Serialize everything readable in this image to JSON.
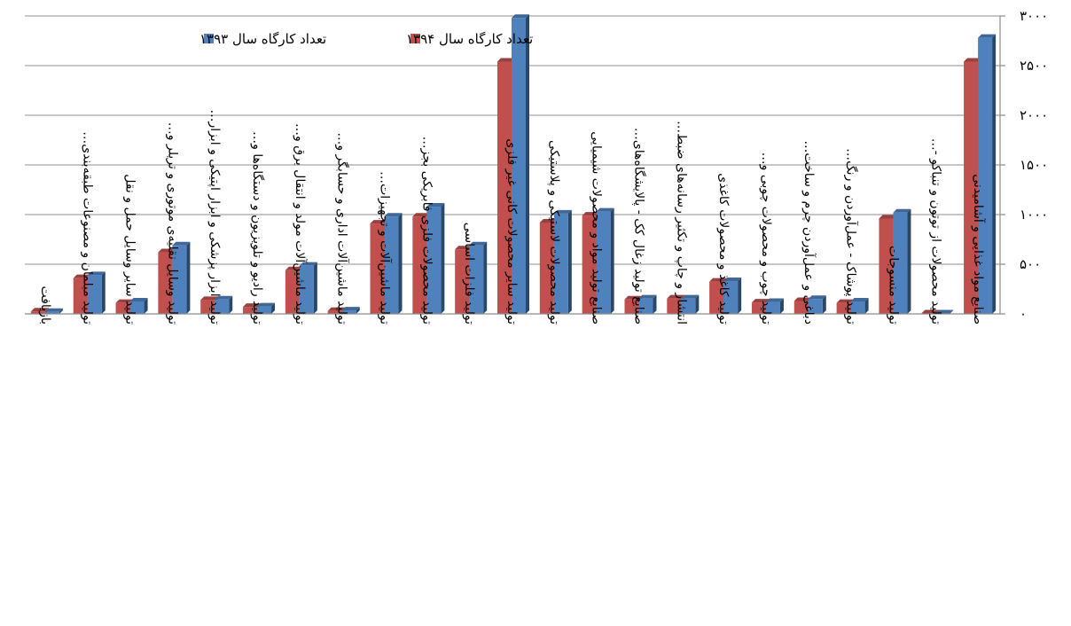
{
  "chart_data": {
    "type": "bar",
    "title": "",
    "xlabel": "",
    "ylabel": "",
    "ylim": [
      0,
      3000
    ],
    "yticks": [
      0,
      500,
      1000,
      1500,
      2000,
      2500,
      3000
    ],
    "ytick_labels": [
      "۰",
      "۵۰۰",
      "۱۰۰۰",
      "۱۵۰۰",
      "۲۰۰۰",
      "۲۵۰۰",
      "۳۰۰۰"
    ],
    "grid": true,
    "legend_position": "top-left",
    "categories": [
      "بازیافت",
      "تولید مبلمان و مصنوعات طبقه‌بندی‌…",
      "تولید سایر وسایل حمل و نقل",
      "تولید وسایل نقلیه‌ی موتوری و تریلر و…",
      "تولید ابزار پزشکی و ابزار اپتیکی و ابزار…",
      "تولید رادیو و تلویزیون و دستگاه‌ها و…",
      "تولید ماشین‌آلات مولد و انتقال برق و…",
      "تولید ماشین‌آلات اداری و حسابگر و…",
      "تولید ماشین‌آلات و تجهیزات…",
      "تولید محصولات فلزی فابریکی بجز…",
      "تولید فلزات اساسی",
      "تولید سایر محصولات کانی غیر فلزی",
      "تولید محصولات لاستیکی و پلاستیکی",
      "صنایع تولید مواد و محصولات شیمیایی",
      "صنایع تولید زغال کک - پالایشگاه‌های…",
      "انتشار و چاپ و تکثیر رسانه‌های ضبط…",
      "تولید کاغذ و محصولات کاغذی",
      "تولید چوب و محصولات چوبی و…",
      "دباغی و عمل‌آوردن چرم و ساخت…",
      "تولید پوشاک - عمل‌آوردن و رنگ…",
      "تولید منسوجات",
      "تولید محصولات از توتون و تنباکو -…",
      "صنایع مواد غذایی و آشامیدنی"
    ],
    "series": [
      {
        "name": "تعداد کارگاه سال ۱۳۹۴",
        "color": "#c0504d",
        "values": [
          25,
          360,
          110,
          620,
          140,
          70,
          440,
          30,
          910,
          980,
          650,
          2540,
          920,
          990,
          145,
          155,
          325,
          115,
          130,
          110,
          960,
          5,
          2540
        ]
      },
      {
        "name": "تعداد کارگاه سال ۱۳۹۳",
        "color": "#4f81bd",
        "values": [
          20,
          390,
          125,
          690,
          145,
          75,
          485,
          35,
          980,
          1080,
          690,
          2980,
          1010,
          1030,
          155,
          155,
          330,
          120,
          150,
          125,
          1020,
          5,
          2780
        ]
      }
    ]
  }
}
